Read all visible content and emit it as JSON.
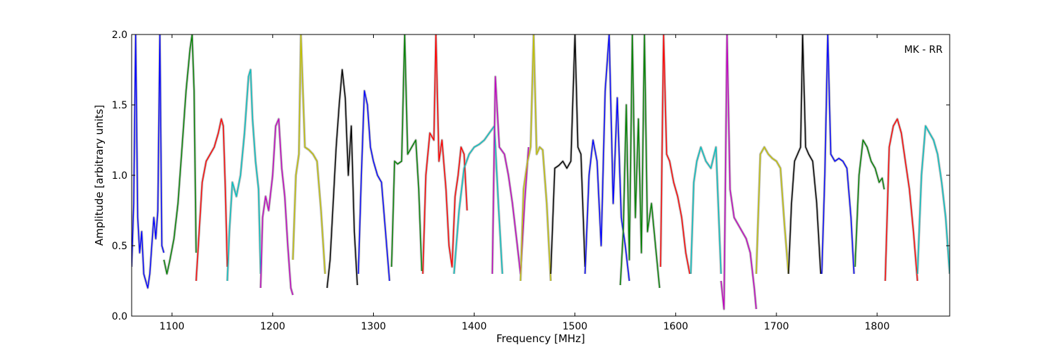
{
  "chart_data": {
    "type": "line",
    "title": "",
    "annotation": "MK - RR",
    "xlabel": "Frequency [MHz]",
    "ylabel": "Amplitude [arbitrary units]",
    "xlim": [
      1060,
      1872
    ],
    "ylim": [
      0.0,
      2.0
    ],
    "x_ticks": [
      1100,
      1200,
      1300,
      1400,
      1500,
      1600,
      1700,
      1800
    ],
    "y_ticks": [
      0.0,
      0.5,
      1.0,
      1.5,
      2.0
    ],
    "x_tick_labels": [
      "1100",
      "1200",
      "1300",
      "1400",
      "1500",
      "1600",
      "1700",
      "1800"
    ],
    "y_tick_labels": [
      "0.0",
      "0.5",
      "1.0",
      "1.5",
      "2.0"
    ],
    "grid": false,
    "legend": "none",
    "background_series_color": "#bfbfbf",
    "series": [
      {
        "color": "#0000ff",
        "x": [
          1060,
          1062,
          1064,
          1066,
          1068,
          1070,
          1072,
          1074,
          1076,
          1078,
          1080,
          1082,
          1084,
          1086,
          1088,
          1090,
          1092
        ],
        "y": [
          0.35,
          0.8,
          2.0,
          0.7,
          0.45,
          0.6,
          0.3,
          0.25,
          0.2,
          0.3,
          0.5,
          0.7,
          0.55,
          0.75,
          2.0,
          0.5,
          0.45
        ]
      },
      {
        "color": "#008000",
        "x": [
          1092,
          1095,
          1098,
          1102,
          1106,
          1110,
          1114,
          1118,
          1120,
          1122,
          1124
        ],
        "y": [
          0.4,
          0.3,
          0.4,
          0.55,
          0.8,
          1.2,
          1.6,
          1.9,
          2.0,
          1.6,
          0.45
        ]
      },
      {
        "color": "#ff0000",
        "x": [
          1124,
          1127,
          1130,
          1134,
          1138,
          1142,
          1146,
          1149,
          1151,
          1153,
          1155
        ],
        "y": [
          0.25,
          0.6,
          0.95,
          1.1,
          1.15,
          1.2,
          1.3,
          1.4,
          1.35,
          0.9,
          0.35
        ]
      },
      {
        "color": "#00bfbf",
        "x": [
          1155,
          1157,
          1160,
          1164,
          1168,
          1172,
          1176,
          1178,
          1180,
          1183,
          1186,
          1188
        ],
        "y": [
          0.25,
          0.6,
          0.95,
          0.85,
          1.0,
          1.3,
          1.7,
          1.75,
          1.4,
          1.1,
          0.9,
          0.3
        ]
      },
      {
        "color": "#bf00bf",
        "x": [
          1188,
          1190,
          1193,
          1196,
          1200,
          1203,
          1206,
          1209,
          1212,
          1215,
          1218,
          1220
        ],
        "y": [
          0.2,
          0.7,
          0.85,
          0.75,
          1.0,
          1.35,
          1.4,
          1.05,
          0.85,
          0.5,
          0.2,
          0.15
        ]
      },
      {
        "color": "#bfbf00",
        "x": [
          1220,
          1223,
          1226,
          1228,
          1232,
          1236,
          1240,
          1244,
          1248,
          1252
        ],
        "y": [
          0.4,
          1.0,
          1.15,
          2.0,
          1.2,
          1.18,
          1.15,
          1.1,
          0.75,
          0.3
        ]
      },
      {
        "color": "#000000",
        "x": [
          1254,
          1257,
          1260,
          1263,
          1266,
          1269,
          1272,
          1275,
          1278,
          1281,
          1284
        ],
        "y": [
          0.2,
          0.4,
          0.8,
          1.2,
          1.5,
          1.75,
          1.55,
          1.0,
          1.35,
          0.6,
          0.22
        ]
      },
      {
        "color": "#0000ff",
        "x": [
          1285,
          1288,
          1291,
          1294,
          1297,
          1300,
          1304,
          1308,
          1312,
          1316
        ],
        "y": [
          0.3,
          1.0,
          1.6,
          1.5,
          1.2,
          1.1,
          1.0,
          0.95,
          0.6,
          0.25
        ]
      },
      {
        "color": "#008000",
        "x": [
          1318,
          1321,
          1324,
          1328,
          1331,
          1334,
          1338,
          1342,
          1345,
          1348
        ],
        "y": [
          0.35,
          1.1,
          1.08,
          1.1,
          2.0,
          1.15,
          1.2,
          1.25,
          0.9,
          0.32
        ]
      },
      {
        "color": "#ff0000",
        "x": [
          1349,
          1352,
          1356,
          1360,
          1362,
          1365,
          1368,
          1372,
          1375,
          1378,
          1381,
          1384,
          1387,
          1390,
          1393
        ],
        "y": [
          0.3,
          1.0,
          1.3,
          1.25,
          2.0,
          1.1,
          1.25,
          0.9,
          0.5,
          0.35,
          0.85,
          1.0,
          1.2,
          1.15,
          0.75
        ]
      },
      {
        "color": "#00bfbf",
        "x": [
          1380,
          1385,
          1390,
          1395,
          1400,
          1405,
          1410,
          1415,
          1420,
          1424,
          1428
        ],
        "y": [
          0.3,
          0.75,
          1.05,
          1.15,
          1.2,
          1.22,
          1.25,
          1.3,
          1.35,
          0.8,
          0.3
        ]
      },
      {
        "color": "#bf00bf",
        "x": [
          1418,
          1421,
          1425,
          1430,
          1434,
          1438,
          1442,
          1446,
          1450,
          1454
        ],
        "y": [
          0.3,
          1.7,
          1.2,
          1.15,
          1.0,
          0.8,
          0.55,
          0.3,
          0.8,
          1.2
        ]
      },
      {
        "color": "#bfbf00",
        "x": [
          1446,
          1449,
          1453,
          1456,
          1459,
          1462,
          1465,
          1468,
          1472,
          1476
        ],
        "y": [
          0.25,
          0.9,
          1.1,
          1.2,
          2.0,
          1.15,
          1.2,
          1.18,
          0.8,
          0.25
        ]
      },
      {
        "color": "#000000",
        "x": [
          1476,
          1480,
          1484,
          1488,
          1492,
          1496,
          1500,
          1503,
          1506,
          1510
        ],
        "y": [
          0.3,
          1.05,
          1.07,
          1.1,
          1.05,
          1.1,
          2.0,
          1.2,
          1.15,
          0.35
        ]
      },
      {
        "color": "#0000ff",
        "x": [
          1510,
          1514,
          1518,
          1522,
          1526,
          1530,
          1534,
          1538,
          1542,
          1546,
          1550,
          1554
        ],
        "y": [
          0.3,
          1.0,
          1.25,
          1.1,
          0.5,
          1.6,
          2.0,
          0.8,
          1.55,
          0.7,
          0.5,
          0.25
        ]
      },
      {
        "color": "#008000",
        "x": [
          1545,
          1548,
          1551,
          1554,
          1557,
          1560,
          1563,
          1566,
          1569,
          1572,
          1576,
          1580,
          1584
        ],
        "y": [
          0.22,
          0.6,
          1.5,
          0.4,
          2.0,
          0.7,
          1.4,
          0.45,
          2.0,
          0.6,
          0.8,
          0.5,
          0.2
        ]
      },
      {
        "color": "#ff0000",
        "x": [
          1585,
          1588,
          1591,
          1594,
          1598,
          1602,
          1606,
          1610,
          1614
        ],
        "y": [
          0.35,
          2.0,
          1.15,
          1.1,
          0.95,
          0.85,
          0.7,
          0.45,
          0.3
        ]
      },
      {
        "color": "#00bfbf",
        "x": [
          1615,
          1618,
          1621,
          1625,
          1630,
          1635,
          1640,
          1645
        ],
        "y": [
          0.3,
          0.95,
          1.1,
          1.2,
          1.1,
          1.05,
          1.2,
          0.3
        ]
      },
      {
        "color": "#bf00bf",
        "x": [
          1645,
          1648,
          1651,
          1654,
          1658,
          1662,
          1666,
          1670,
          1674,
          1678,
          1680
        ],
        "y": [
          0.25,
          0.05,
          2.0,
          0.9,
          0.7,
          0.65,
          0.6,
          0.55,
          0.45,
          0.2,
          0.05
        ]
      },
      {
        "color": "#bfbf00",
        "x": [
          1680,
          1684,
          1688,
          1692,
          1696,
          1700,
          1704,
          1708,
          1712
        ],
        "y": [
          0.3,
          1.15,
          1.2,
          1.15,
          1.12,
          1.1,
          1.05,
          0.65,
          0.3
        ]
      },
      {
        "color": "#000000",
        "x": [
          1712,
          1715,
          1718,
          1721,
          1724,
          1726,
          1729,
          1732,
          1736,
          1740,
          1744
        ],
        "y": [
          0.3,
          0.8,
          1.1,
          1.15,
          1.2,
          2.0,
          1.2,
          1.15,
          1.1,
          0.8,
          0.3
        ]
      },
      {
        "color": "#0000ff",
        "x": [
          1745,
          1748,
          1751,
          1754,
          1758,
          1762,
          1766,
          1770,
          1774,
          1777
        ],
        "y": [
          0.3,
          1.0,
          2.0,
          1.15,
          1.1,
          1.12,
          1.1,
          1.05,
          0.7,
          0.3
        ]
      },
      {
        "color": "#008000",
        "x": [
          1778,
          1782,
          1786,
          1790,
          1794,
          1798,
          1802,
          1805,
          1807
        ],
        "y": [
          0.35,
          1.0,
          1.25,
          1.2,
          1.1,
          1.05,
          0.95,
          0.98,
          0.9
        ]
      },
      {
        "color": "#ff0000",
        "x": [
          1808,
          1812,
          1816,
          1820,
          1824,
          1828,
          1832,
          1836,
          1840
        ],
        "y": [
          0.25,
          1.2,
          1.35,
          1.4,
          1.3,
          1.1,
          0.9,
          0.6,
          0.25
        ]
      },
      {
        "color": "#00bfbf",
        "x": [
          1840,
          1844,
          1848,
          1852,
          1856,
          1860,
          1864,
          1868,
          1872
        ],
        "y": [
          0.3,
          1.0,
          1.35,
          1.3,
          1.25,
          1.15,
          0.95,
          0.7,
          0.3
        ]
      }
    ]
  }
}
